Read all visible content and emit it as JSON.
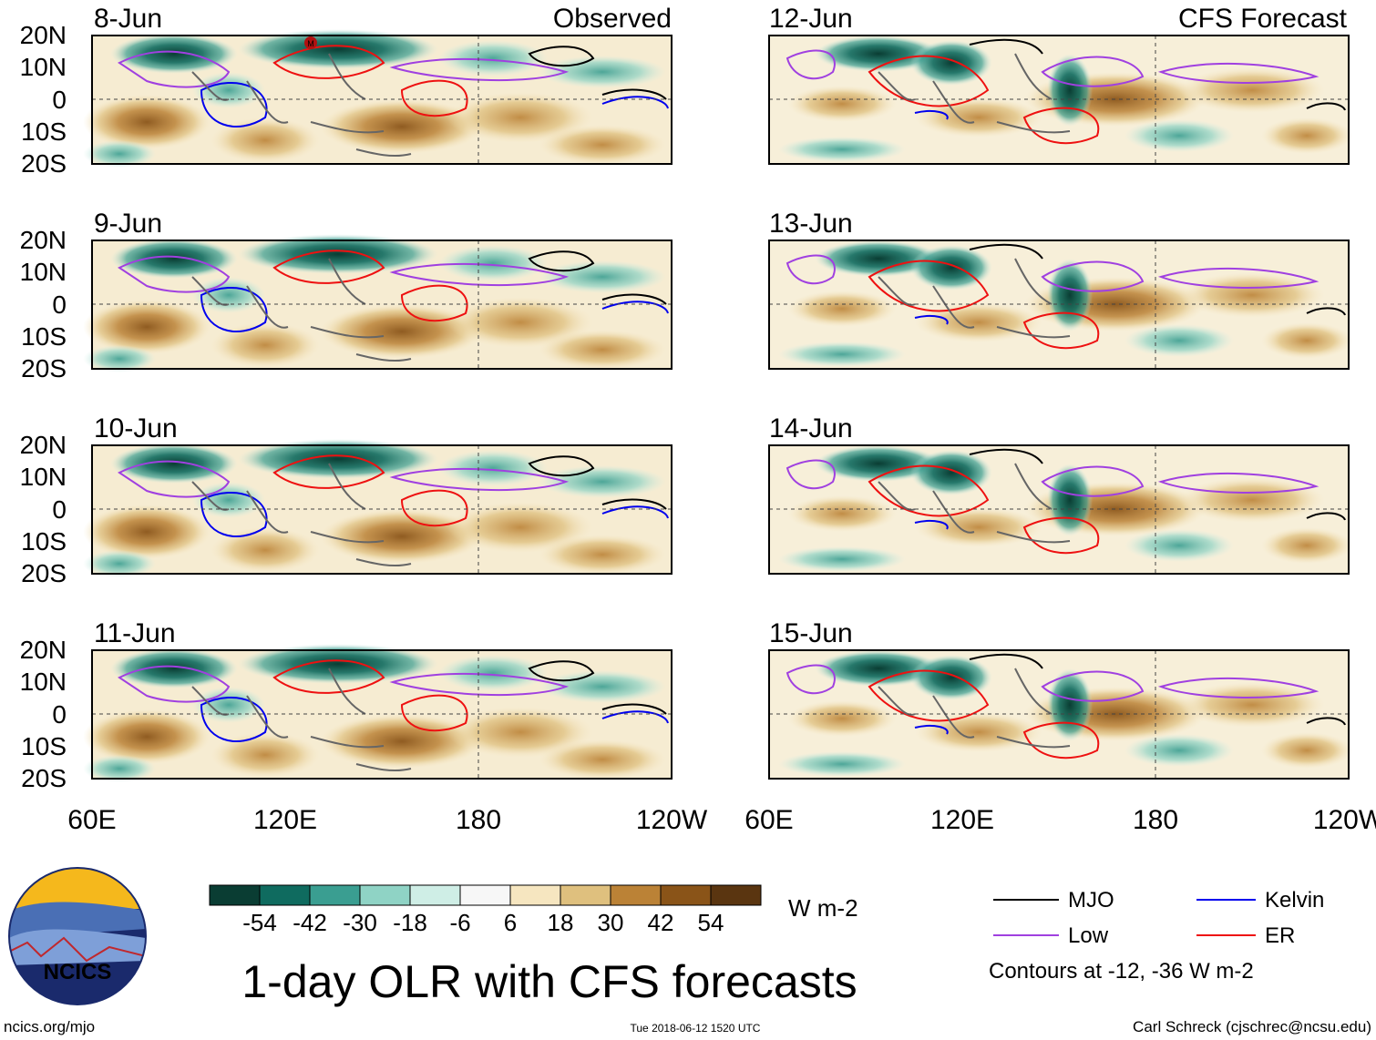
{
  "column_titles": {
    "observed": "Observed",
    "forecast": "CFS Forecast"
  },
  "panels": {
    "observed": [
      {
        "date": "8-Jun",
        "has_marker": true,
        "marker_label": "M"
      },
      {
        "date": "9-Jun"
      },
      {
        "date": "10-Jun"
      },
      {
        "date": "11-Jun"
      }
    ],
    "forecast": [
      {
        "date": "12-Jun"
      },
      {
        "date": "13-Jun"
      },
      {
        "date": "14-Jun"
      },
      {
        "date": "15-Jun"
      }
    ]
  },
  "lat_labels": [
    "20N",
    "10N",
    "0",
    "10S",
    "20S"
  ],
  "lon_labels": [
    "60E",
    "120E",
    "180",
    "120W"
  ],
  "colorbar": {
    "colors": [
      "#0a3d33",
      "#0f6b5f",
      "#3a9e91",
      "#8fd3c5",
      "#cfeee6",
      "#f7f7f7",
      "#f6e6c0",
      "#dfc07e",
      "#bb8236",
      "#8a5418",
      "#5a3510"
    ],
    "tick_labels": [
      "-54",
      "-42",
      "-30",
      "-18",
      "-6",
      "6",
      "18",
      "30",
      "42",
      "54"
    ],
    "units": "W m-2"
  },
  "legend": {
    "items": [
      {
        "label": "MJO",
        "color": "#000000"
      },
      {
        "label": "Kelvin",
        "color": "#0000ee"
      },
      {
        "label": "Low",
        "color": "#a040e0"
      },
      {
        "label": "ER",
        "color": "#ee1111"
      }
    ],
    "note": "Contours at -12, -36 W m-2"
  },
  "title": "1-day OLR with CFS forecasts",
  "footer": {
    "site": "ncics.org/mjo",
    "timestamp": "Tue 2018-06-12 1520 UTC",
    "author": "Carl Schreck (cjschrec@ncsu.edu)",
    "logo_text": "NCICS"
  }
}
